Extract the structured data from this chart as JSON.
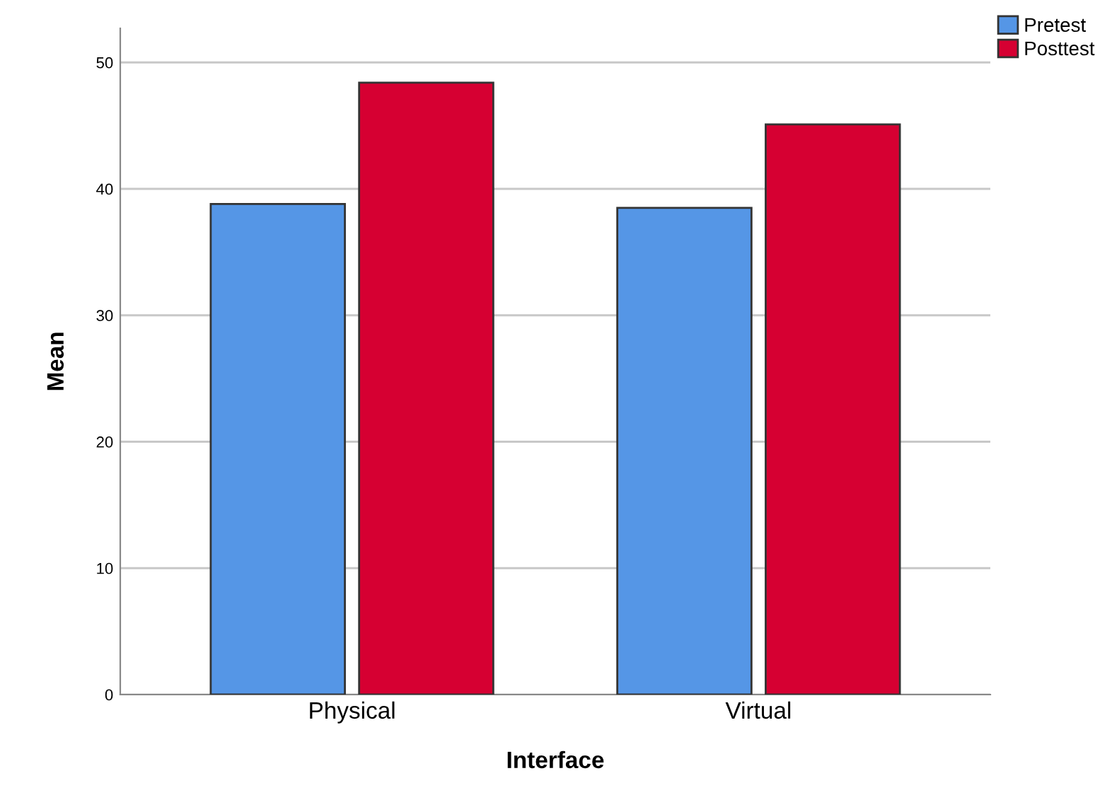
{
  "chart_data": {
    "type": "bar",
    "xlabel": "Interface",
    "ylabel": "Mean",
    "categories": [
      "Physical",
      "Virtual"
    ],
    "series": [
      {
        "name": "Pretest",
        "color": "#5596e6",
        "values": [
          38.8,
          38.5
        ]
      },
      {
        "name": "Posttest",
        "color": "#d60032",
        "values": [
          48.4,
          45.1
        ]
      }
    ],
    "ylim": [
      0,
      52.7
    ],
    "yticks": [
      0,
      10,
      20,
      30,
      40,
      50
    ],
    "grid": "y",
    "legend": "top right"
  }
}
